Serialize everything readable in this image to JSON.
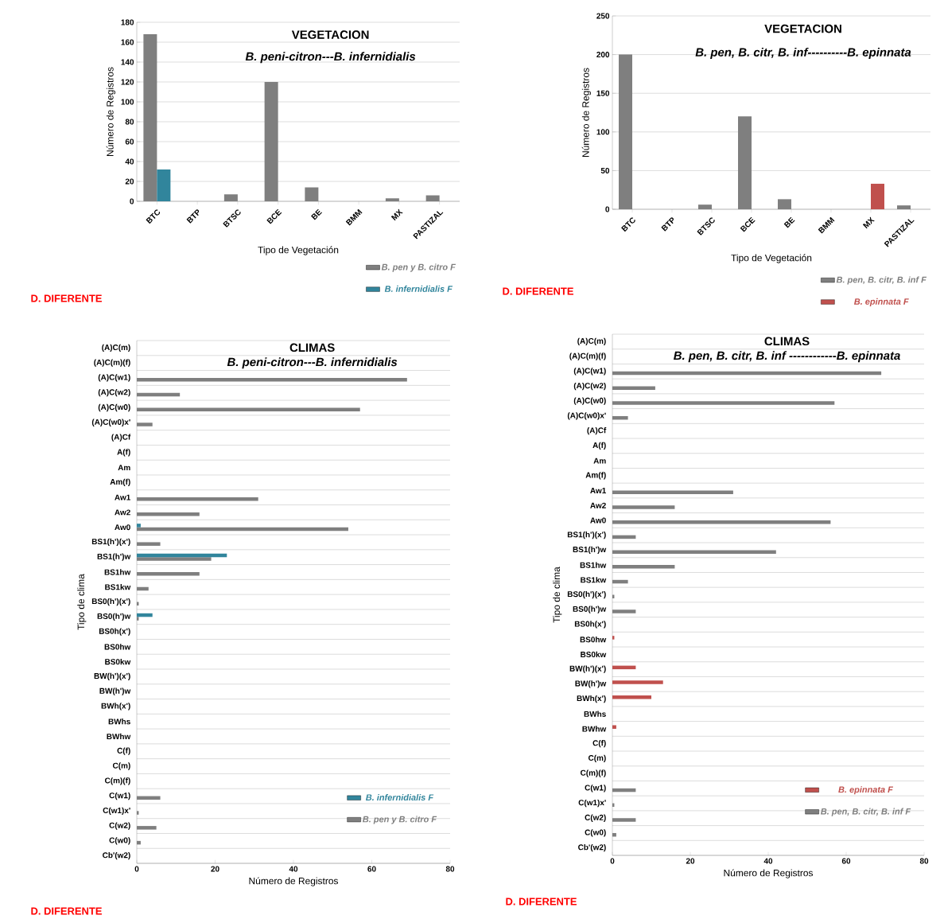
{
  "chart_data": [
    {
      "type": "bar",
      "title": "VEGETACION",
      "subtitle": "B. peni-citron---B. infernidialis",
      "xlabel": "Tipo de Vegetación",
      "ylabel": "Número de Registros",
      "categories": [
        "BTC",
        "BTP",
        "BTSC",
        "BCE",
        "BE",
        "BMM",
        "MX",
        "PASTIZAL"
      ],
      "series": [
        {
          "name": "B. pen y B. citro F",
          "color": "#7f7f7f",
          "values": [
            168,
            0,
            7,
            120,
            14,
            0,
            3,
            6
          ]
        },
        {
          "name": "B. infernidialis F",
          "color": "#31859c",
          "values": [
            32,
            0,
            0,
            0,
            0,
            0,
            0,
            0
          ]
        }
      ],
      "ylim": [
        0,
        180
      ],
      "yticks": [
        0,
        20,
        40,
        60,
        80,
        100,
        120,
        140,
        160,
        180
      ],
      "grid": "y",
      "legend": "bottom right",
      "annotations": [
        "D. DIFERENTE"
      ]
    },
    {
      "type": "bar",
      "title": "VEGETACION",
      "subtitle": "B. pen, B. citr, B. inf----------B. epinnata",
      "xlabel": "Tipo de Vegetación",
      "ylabel": "Número de Registros",
      "categories": [
        "BTC",
        "BTP",
        "BTSC",
        "BCE",
        "BE",
        "BMM",
        "MX",
        "PASTIZAL"
      ],
      "series": [
        {
          "name": "B. pen, B. citr, B. inf F",
          "color": "#7f7f7f",
          "values": [
            200,
            0,
            6,
            120,
            13,
            0,
            0,
            5
          ]
        },
        {
          "name": "B. epinnata F",
          "color": "#c0504d",
          "values": [
            0,
            0,
            0,
            0,
            0,
            0,
            33,
            0
          ]
        }
      ],
      "ylim": [
        0,
        250
      ],
      "yticks": [
        0,
        50,
        100,
        150,
        200,
        250
      ],
      "grid": "y",
      "legend": "bottom right",
      "annotations": [
        "D. DIFERENTE"
      ]
    },
    {
      "type": "bar",
      "orientation": "horizontal",
      "title": "CLIMAS",
      "subtitle": "B. peni-citron---B. infernidialis",
      "xlabel": "Número de Registros",
      "ylabel": "Tipo de clima",
      "categories": [
        "(A)C(m)",
        "(A)C(m)(f)",
        "(A)C(w1)",
        "(A)C(w2)",
        "(A)C(w0)",
        "(A)C(w0)x'",
        "(A)Cf",
        "A(f)",
        "Am",
        "Am(f)",
        "Aw1",
        "Aw2",
        "Aw0",
        "BS1(h')(x')",
        "BS1(h')w",
        "BS1hw",
        "BS1kw",
        "BS0(h')(x')",
        "BS0(h')w",
        "BS0h(x')",
        "BS0hw",
        "BS0kw",
        "BW(h')(x')",
        "BW(h')w",
        "BWh(x')",
        "BWhs",
        "BWhw",
        "C(f)",
        "C(m)",
        "C(m)(f)",
        "C(w1)",
        "C(w1)x'",
        "C(w2)",
        "C(w0)",
        "Cb'(w2)"
      ],
      "series": [
        {
          "name": "B. pen y B. citro F",
          "color": "#7f7f7f",
          "values": [
            0,
            0,
            69,
            11,
            57,
            4,
            0,
            0,
            0,
            0,
            31,
            16,
            54,
            6,
            19,
            16,
            3,
            0.5,
            0.5,
            0,
            0,
            0,
            0,
            0,
            0,
            0,
            0,
            0,
            0,
            0,
            6,
            0.5,
            5,
            1,
            0
          ]
        },
        {
          "name": "B. infernidialis F",
          "color": "#31859c",
          "values": [
            0,
            0,
            0,
            0,
            0,
            0,
            0,
            0,
            0,
            0,
            0,
            0,
            1,
            0,
            23,
            0,
            0,
            0,
            4,
            0,
            0,
            0,
            0,
            0,
            0,
            0,
            0,
            0,
            0,
            0,
            0,
            0,
            0,
            0,
            0
          ]
        }
      ],
      "xlim": [
        0,
        80
      ],
      "xticks": [
        0,
        20,
        40,
        60,
        80
      ],
      "grid": "y",
      "legend": "bottom right",
      "annotations": [
        "D. DIFERENTE"
      ]
    },
    {
      "type": "bar",
      "orientation": "horizontal",
      "title": "CLIMAS",
      "subtitle": "B. pen, B. citr, B. inf ------------B. epinnata",
      "xlabel": "Número de Registros",
      "ylabel": "Tipo de clima",
      "categories": [
        "(A)C(m)",
        "(A)C(m)(f)",
        "(A)C(w1)",
        "(A)C(w2)",
        "(A)C(w0)",
        "(A)C(w0)x'",
        "(A)Cf",
        "A(f)",
        "Am",
        "Am(f)",
        "Aw1",
        "Aw2",
        "Aw0",
        "BS1(h')(x')",
        "BS1(h')w",
        "BS1hw",
        "BS1kw",
        "BS0(h')(x')",
        "BS0(h')w",
        "BS0h(x')",
        "BS0hw",
        "BS0kw",
        "BW(h')(x')",
        "BW(h')w",
        "BWh(x')",
        "BWhs",
        "BWhw",
        "C(f)",
        "C(m)",
        "C(m)(f)",
        "C(w1)",
        "C(w1)x'",
        "C(w2)",
        "C(w0)",
        "Cb'(w2)"
      ],
      "series": [
        {
          "name": "B. pen, B. citr, B. inf F",
          "color": "#7f7f7f",
          "values": [
            0,
            0,
            69,
            11,
            57,
            4,
            0,
            0,
            0,
            0,
            31,
            16,
            56,
            6,
            42,
            16,
            4,
            0.5,
            6,
            0,
            0,
            0,
            0,
            0,
            0,
            0,
            0,
            0,
            0,
            0,
            6,
            0.5,
            6,
            1,
            0
          ]
        },
        {
          "name": "B. epinnata F",
          "color": "#c0504d",
          "values": [
            0,
            0,
            0,
            0,
            0,
            0,
            0,
            0,
            0,
            0,
            0,
            0,
            0,
            0,
            0,
            0,
            0,
            0,
            0,
            0,
            0.5,
            0,
            6,
            13,
            10,
            0,
            1,
            0,
            0,
            0,
            0,
            0,
            0,
            0,
            0
          ]
        }
      ],
      "xlim": [
        0,
        80
      ],
      "xticks": [
        0,
        20,
        40,
        60,
        80
      ],
      "grid": "y",
      "legend": "bottom right",
      "annotations": [
        "D. DIFERENTE"
      ]
    }
  ]
}
